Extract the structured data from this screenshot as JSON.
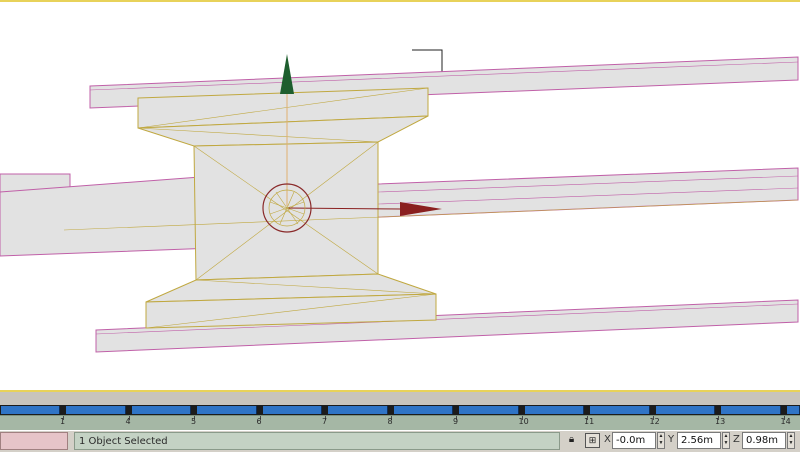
{
  "viewport": {
    "colors": {
      "mesh_fill": "#e2e2e2",
      "selected_wire": "#c0a840",
      "unselected_wire": "#c060a8",
      "y_axis": "#1e5e2e",
      "x_axis": "#8a1f1f",
      "gizmo_ring": "#8a2a2a",
      "bracket": "#222222"
    }
  },
  "timeline": {
    "tick_labels": [
      "1",
      "4",
      "5",
      "6",
      "7",
      "8",
      "9",
      "10",
      "11",
      "12",
      "13",
      "14"
    ],
    "colors": {
      "track": "#2f74c6",
      "ruler": "#a5b7a5"
    }
  },
  "status": {
    "prompt": "1 Object Selected",
    "lock_icon": "lock-icon",
    "mode_icon": "absolute-mode-icon",
    "axis_x": "X",
    "axis_y": "Y",
    "axis_z": "Z",
    "x_value": "-0.0m",
    "y_value": "2.56m",
    "z_value": "0.98m"
  }
}
